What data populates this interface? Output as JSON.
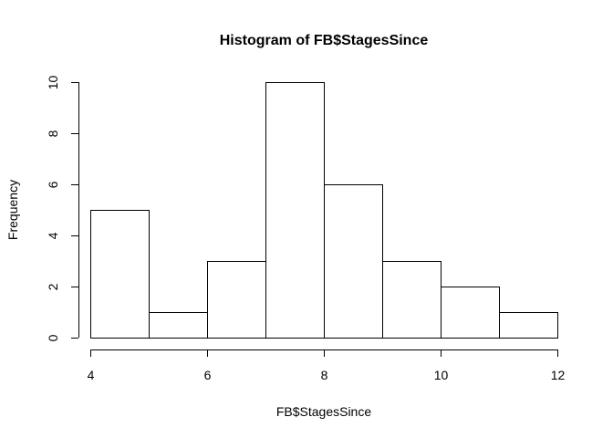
{
  "chart_data": {
    "type": "histogram",
    "title": "Histogram of FB$StagesSince",
    "xlabel": "FB$StagesSince",
    "ylabel": "Frequency",
    "bins": [
      {
        "start": 4,
        "end": 5,
        "count": 5
      },
      {
        "start": 5,
        "end": 6,
        "count": 1
      },
      {
        "start": 6,
        "end": 7,
        "count": 3
      },
      {
        "start": 7,
        "end": 8,
        "count": 10
      },
      {
        "start": 8,
        "end": 9,
        "count": 6
      },
      {
        "start": 9,
        "end": 10,
        "count": 3
      },
      {
        "start": 10,
        "end": 11,
        "count": 2
      },
      {
        "start": 11,
        "end": 12,
        "count": 1
      }
    ],
    "xlim": [
      4,
      12
    ],
    "ylim": [
      0,
      10
    ],
    "xticks": [
      4,
      6,
      8,
      10,
      12
    ],
    "yticks": [
      0,
      2,
      4,
      6,
      8,
      10
    ],
    "grid": false,
    "bar_fill": "#ffffff",
    "bar_stroke": "#000000"
  }
}
